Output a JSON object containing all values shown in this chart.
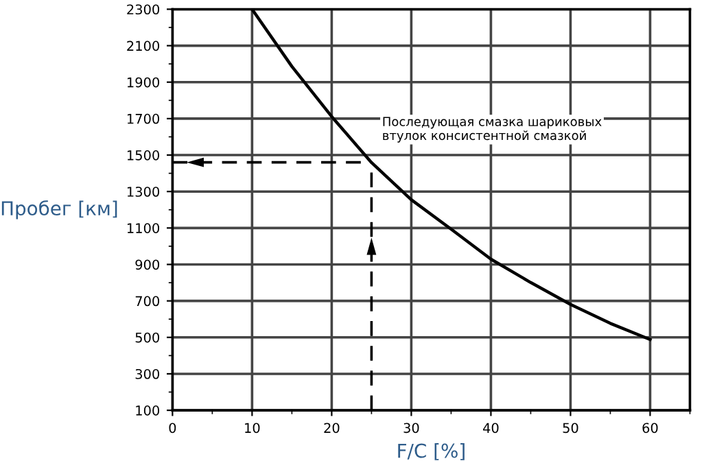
{
  "chart_data": {
    "type": "line",
    "xlabel": "F/C [%]",
    "ylabel": "Пробег [км]",
    "x": [
      10,
      15,
      20,
      25,
      30,
      35,
      40,
      45,
      50,
      55,
      60
    ],
    "series": [
      {
        "color": "#000000",
        "values": [
          2300,
          1986,
          1711,
          1459,
          1255,
          1094,
          929,
          801,
          681,
          577,
          488
        ]
      }
    ],
    "xlim": [
      0,
      65
    ],
    "xticks": [
      0,
      10,
      20,
      30,
      40,
      50,
      60
    ],
    "ylim": [
      100,
      2300
    ],
    "yticks": [
      100,
      300,
      500,
      700,
      900,
      1100,
      1300,
      1500,
      1700,
      1900,
      2100,
      2300
    ],
    "grid": true,
    "marker": "none",
    "line_style": "solid",
    "ref_lines": [
      {
        "axis": "y",
        "value": 1460,
        "line_style": "dashed",
        "color": "#000000"
      },
      {
        "axis": "x",
        "value": 25,
        "line_style": "dashed",
        "color": "#000000"
      }
    ],
    "annotations": [
      "Последующая смазка шариковых\nвтулок консистентной смазкой"
    ]
  }
}
